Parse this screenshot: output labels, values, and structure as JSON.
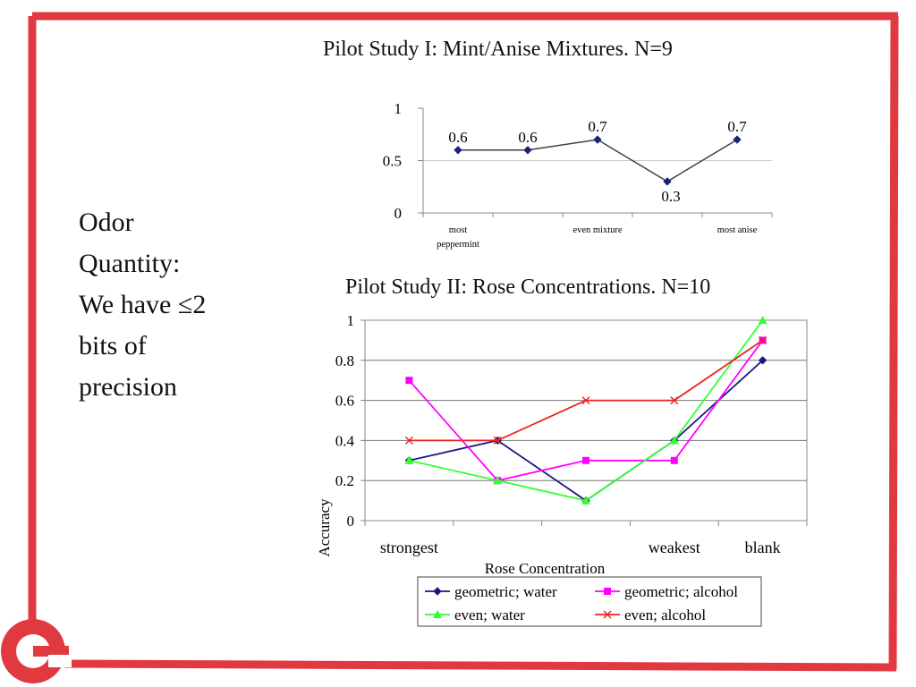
{
  "brand_color": "#e03a40",
  "side_text": {
    "lines": [
      "Odor",
      "Quantity:",
      "We have ≤2",
      "bits of",
      "precision"
    ]
  },
  "chart_data": [
    {
      "type": "line",
      "title": "Pilot Study I: Mint/Anise Mixtures.  N=9",
      "categories": [
        "most peppermint",
        "",
        "even mixture",
        "",
        "most anise"
      ],
      "category_labels": [
        [
          "most",
          "peppermint"
        ],
        [
          ""
        ],
        [
          "even mixture"
        ],
        [
          ""
        ],
        [
          "most anise"
        ]
      ],
      "series": [
        {
          "values": [
            0.6,
            0.6,
            0.7,
            0.3,
            0.7
          ],
          "color": "#404040",
          "marker": "diamond",
          "marker_color": "#1a237e"
        }
      ],
      "data_labels": [
        "0.6",
        "0.6",
        "0.7",
        "0.3",
        "0.7"
      ],
      "ylim": [
        0,
        1
      ],
      "yticks": [
        {
          "value": 0,
          "label": "0"
        },
        {
          "value": 0.5,
          "label": "0.5"
        },
        {
          "value": 1,
          "label": "1"
        }
      ],
      "grid": "y at 0.5",
      "xlabel": "",
      "ylabel": ""
    },
    {
      "type": "line",
      "title": "Pilot Study II: Rose Concentrations.  N=10",
      "categories": [
        "strongest",
        "",
        "",
        "weakest",
        "blank"
      ],
      "series": [
        {
          "name": "geometric; water",
          "values": [
            0.3,
            0.4,
            0.1,
            0.4,
            0.8
          ],
          "color": "#1a1a80",
          "marker": "diamond"
        },
        {
          "name": "geometric; alcohol",
          "values": [
            0.7,
            0.2,
            0.3,
            0.3,
            0.9
          ],
          "color": "#ff00ff",
          "marker": "square"
        },
        {
          "name": "even; water",
          "values": [
            0.3,
            0.2,
            0.1,
            0.4,
            1.0
          ],
          "color": "#33ff33",
          "marker": "triangle"
        },
        {
          "name": "even; alcohol",
          "values": [
            0.4,
            0.4,
            0.6,
            0.6,
            0.9
          ],
          "color": "#ee2222",
          "marker": "x"
        }
      ],
      "ylim": [
        0,
        1
      ],
      "yticks": [
        {
          "value": 0,
          "label": "0"
        },
        {
          "value": 0.2,
          "label": "0.2"
        },
        {
          "value": 0.4,
          "label": "0.4"
        },
        {
          "value": 0.6,
          "label": "0.6"
        },
        {
          "value": 0.8,
          "label": "0.8"
        },
        {
          "value": 1,
          "label": "1"
        }
      ],
      "grid": "horizontal",
      "legend": "bottom",
      "xlabel": "Rose Concentration",
      "ylabel": "Accuracy"
    }
  ]
}
